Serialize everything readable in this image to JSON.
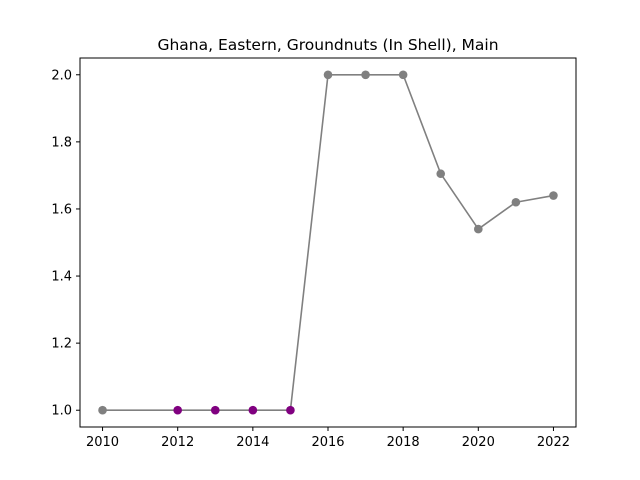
{
  "chart_data": {
    "type": "line",
    "title": "Ghana, Eastern, Groundnuts (In Shell), Main",
    "xlabel": "",
    "ylabel": "",
    "xlim": [
      2009.4,
      2022.6
    ],
    "ylim": [
      0.95,
      2.05
    ],
    "xticks": [
      2010,
      2012,
      2014,
      2016,
      2018,
      2020,
      2022
    ],
    "yticks": [
      1.0,
      1.2,
      1.4,
      1.6,
      1.8,
      2.0
    ],
    "grid": false,
    "legend": "none",
    "series": [
      {
        "line_color": "#808080",
        "x": [
          2010,
          2012,
          2013,
          2014,
          2015,
          2016,
          2017,
          2018,
          2019,
          2020,
          2021,
          2022
        ],
        "y": [
          1.0,
          1.0,
          1.0,
          1.0,
          1.0,
          2.0,
          2.0,
          2.0,
          1.705,
          1.54,
          1.62,
          1.64
        ],
        "marker_colors": [
          "#808080",
          "#800080",
          "#800080",
          "#800080",
          "#800080",
          "#808080",
          "#808080",
          "#808080",
          "#808080",
          "#808080",
          "#808080",
          "#808080"
        ]
      }
    ]
  }
}
